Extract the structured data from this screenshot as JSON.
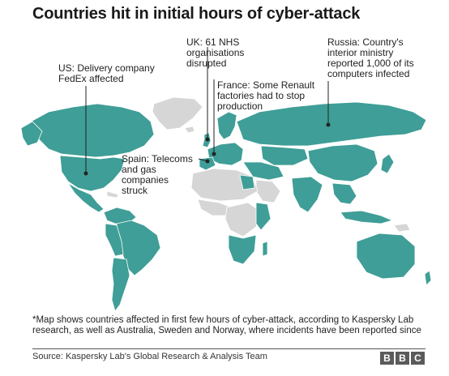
{
  "title": "Countries hit in initial hours of cyber-attack",
  "annotations": {
    "uk": [
      "UK: 61 NHS",
      "organisations",
      "disrupted"
    ],
    "us": [
      "US: Delivery company",
      "FedEx affected"
    ],
    "russia": [
      "Russia: Country's",
      "interior ministry",
      "reported 1,000 of its",
      "computers infected"
    ],
    "france": [
      "France: Some Renault",
      "factories had to stop",
      "production"
    ],
    "spain": [
      "Spain: Telecoms",
      "and gas",
      "companies",
      "struck"
    ]
  },
  "footnote": "*Map shows countries affected in first few hours of cyber-attack, according to Kaspersky Lab research, as well as Australia, Sweden and Norway, where incidents have been reported since",
  "source": "Source: Kaspersky Lab's Global Research & Analysis Team",
  "logo": [
    "B",
    "B",
    "C"
  ],
  "legend_colors": {
    "affected": "#3f9e97",
    "not_affected": "#d6d6d6"
  }
}
